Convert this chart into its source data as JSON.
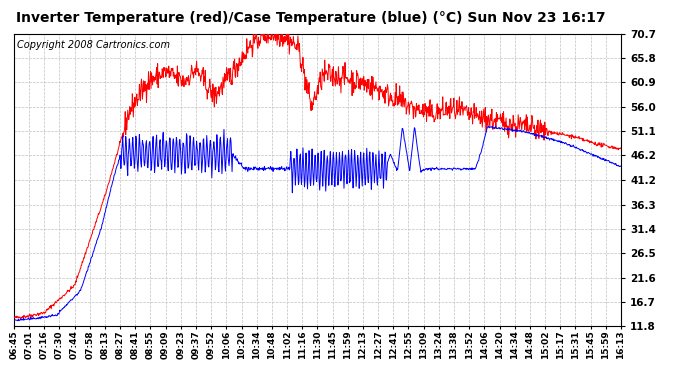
{
  "title": "Inverter Temperature (red)/Case Temperature (blue) (°C) Sun Nov 23 16:17",
  "copyright": "Copyright 2008 Cartronics.com",
  "yticks": [
    11.8,
    16.7,
    21.6,
    26.5,
    31.4,
    36.3,
    41.2,
    46.2,
    51.1,
    56.0,
    60.9,
    65.8,
    70.7
  ],
  "ymin": 11.8,
  "ymax": 70.7,
  "background_color": "#ffffff",
  "plot_bg_color": "#ffffff",
  "grid_color": "#c0c0c0",
  "red_color": "#ff0000",
  "blue_color": "#0000ff",
  "title_fontsize": 10,
  "copyright_fontsize": 7,
  "xtick_labels": [
    "06:45",
    "07:01",
    "07:16",
    "07:30",
    "07:44",
    "07:58",
    "08:13",
    "08:27",
    "08:41",
    "08:55",
    "09:09",
    "09:23",
    "09:37",
    "09:52",
    "10:06",
    "10:20",
    "10:34",
    "10:48",
    "11:02",
    "11:16",
    "11:30",
    "11:45",
    "11:59",
    "12:13",
    "12:27",
    "12:41",
    "12:55",
    "13:09",
    "13:24",
    "13:38",
    "13:52",
    "14:06",
    "14:20",
    "14:34",
    "14:48",
    "15:02",
    "15:17",
    "15:31",
    "15:45",
    "15:59",
    "16:13"
  ],
  "n_xticks": 41,
  "n_points": 1200,
  "seed": 42
}
